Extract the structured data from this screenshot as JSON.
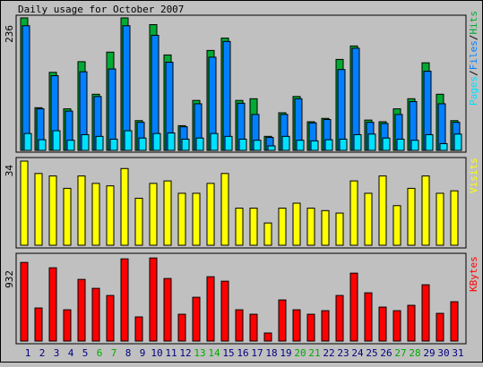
{
  "title": "Daily usage for October 2007",
  "colors": {
    "background": "#c0c0c0",
    "hits": "#00aa33",
    "files": "#0080ff",
    "pages": "#00e0ff",
    "visits": "#ffff00",
    "kbytes": "#ff0000",
    "weekend_label": "#00aa00",
    "weekday_label": "#000080"
  },
  "legend": {
    "pages": "Pages",
    "sep1": "/",
    "files": "Files",
    "sep2": "/",
    "hits": "Hits",
    "visits": "Visits",
    "kbytes": "KBytes"
  },
  "chart_data": [
    {
      "type": "bar",
      "title": "Daily usage for October 2007",
      "ylabel": "Pages/Files/Hits",
      "ymax_label": "236",
      "ylim": [
        0,
        236
      ],
      "categories": [
        "1",
        "2",
        "3",
        "4",
        "5",
        "6",
        "7",
        "8",
        "9",
        "10",
        "11",
        "12",
        "13",
        "14",
        "15",
        "16",
        "17",
        "18",
        "19",
        "20",
        "21",
        "22",
        "23",
        "24",
        "25",
        "26",
        "27",
        "28",
        "29",
        "30",
        "31"
      ],
      "weekend_days": [
        "6",
        "7",
        "13",
        "14",
        "20",
        "21",
        "27",
        "28"
      ],
      "series": [
        {
          "name": "Hits",
          "values": [
            236,
            76,
            139,
            74,
            158,
            100,
            175,
            236,
            53,
            224,
            170,
            44,
            89,
            178,
            200,
            89,
            92,
            25,
            67,
            96,
            51,
            57,
            162,
            186,
            54,
            51,
            74,
            92,
            156,
            100,
            53
          ]
        },
        {
          "name": "Files",
          "values": [
            222,
            74,
            133,
            70,
            140,
            96,
            145,
            222,
            50,
            205,
            157,
            42,
            83,
            166,
            194,
            84,
            64,
            23,
            64,
            92,
            49,
            55,
            144,
            182,
            50,
            48,
            64,
            87,
            141,
            83,
            50
          ]
        },
        {
          "name": "Pages",
          "values": [
            30,
            19,
            35,
            18,
            28,
            25,
            20,
            35,
            22,
            30,
            31,
            20,
            22,
            30,
            25,
            20,
            18,
            8,
            25,
            18,
            17,
            19,
            20,
            28,
            29,
            22,
            20,
            18,
            28,
            12,
            29
          ]
        }
      ]
    },
    {
      "type": "bar",
      "ylabel": "Visits",
      "ymax_label": "34",
      "ylim": [
        0,
        34
      ],
      "categories": [
        "1",
        "2",
        "3",
        "4",
        "5",
        "6",
        "7",
        "8",
        "9",
        "10",
        "11",
        "12",
        "13",
        "14",
        "15",
        "16",
        "17",
        "18",
        "19",
        "20",
        "21",
        "22",
        "23",
        "24",
        "25",
        "26",
        "27",
        "28",
        "29",
        "30",
        "31"
      ],
      "series": [
        {
          "name": "Visits",
          "values": [
            34,
            29,
            28,
            23,
            28,
            25,
            24,
            31,
            19,
            25,
            26,
            21,
            21,
            25,
            29,
            15,
            15,
            9,
            15,
            17,
            15,
            14,
            13,
            26,
            21,
            28,
            16,
            23,
            28,
            21,
            22
          ]
        }
      ]
    },
    {
      "type": "bar",
      "ylabel": "KBytes",
      "ymax_label": "932",
      "ylim": [
        0,
        932
      ],
      "categories": [
        "1",
        "2",
        "3",
        "4",
        "5",
        "6",
        "7",
        "8",
        "9",
        "10",
        "11",
        "12",
        "13",
        "14",
        "15",
        "16",
        "17",
        "18",
        "19",
        "20",
        "21",
        "22",
        "23",
        "24",
        "25",
        "26",
        "27",
        "28",
        "29",
        "30",
        "31"
      ],
      "series": [
        {
          "name": "KBytes",
          "values": [
            880,
            370,
            820,
            350,
            690,
            590,
            510,
            920,
            270,
            930,
            700,
            300,
            490,
            720,
            670,
            350,
            300,
            90,
            460,
            350,
            300,
            340,
            510,
            760,
            540,
            380,
            340,
            400,
            630,
            310,
            440
          ]
        }
      ]
    }
  ]
}
